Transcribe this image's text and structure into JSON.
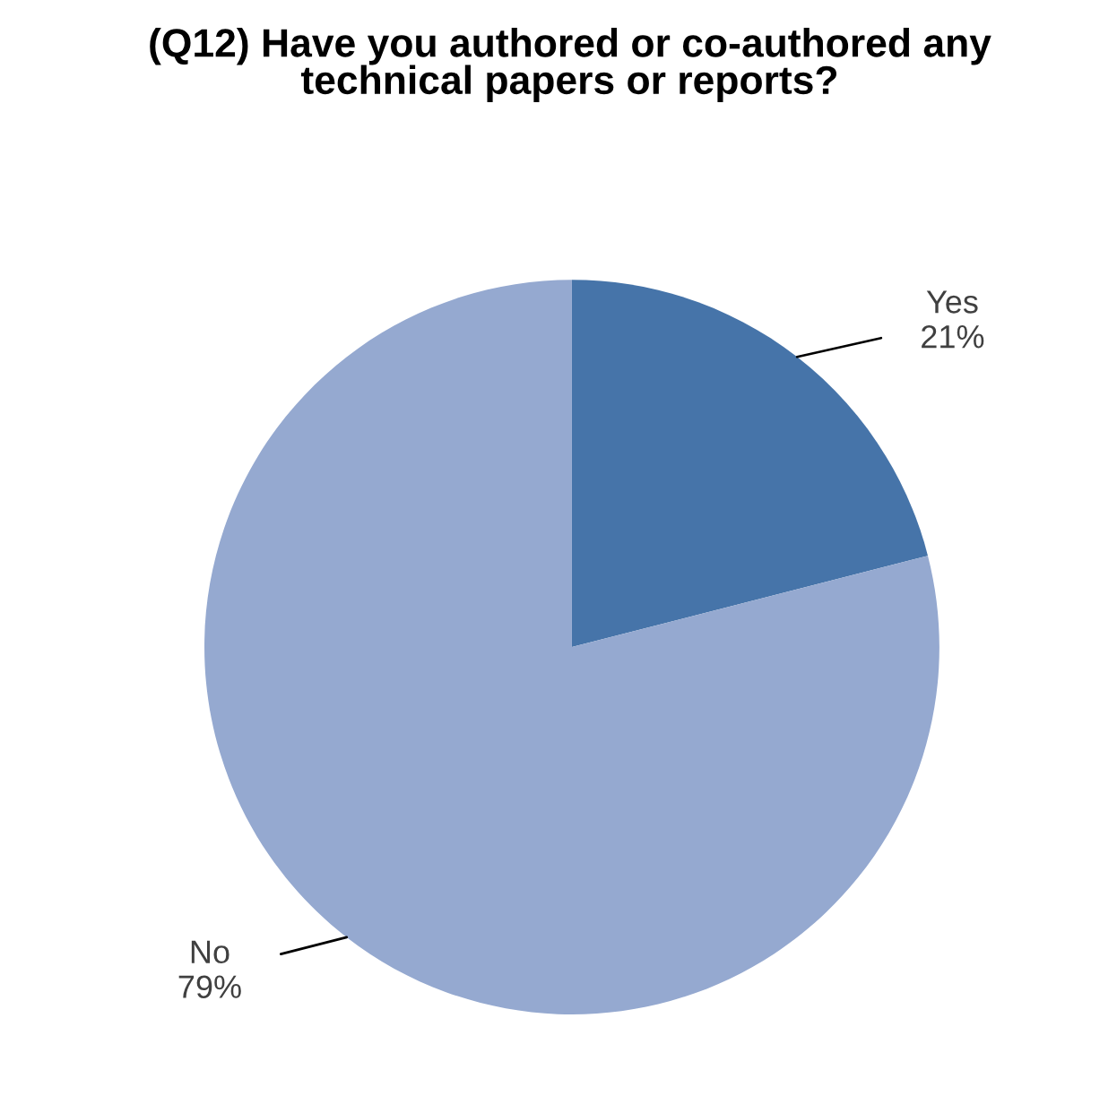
{
  "chart_data": {
    "type": "pie",
    "title": "(Q12) Have you authored or co-authored any technical papers or reports?",
    "categories": [
      "Yes",
      "No"
    ],
    "values": [
      21,
      79
    ],
    "value_labels": [
      "21%",
      "79%"
    ],
    "colors": [
      "#4674a9",
      "#95a9d0"
    ],
    "legend": false
  }
}
